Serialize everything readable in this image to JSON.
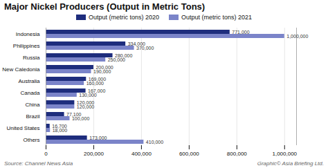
{
  "chart_data": {
    "type": "bar",
    "orientation": "horizontal",
    "title": "Major Nickel Producers (Output in Metric Tons)",
    "categories": [
      "Indonesia",
      "Philippines",
      "Russia",
      "New Caledonia",
      "Australia",
      "Canada",
      "China",
      "Brazil",
      "United States",
      "Others"
    ],
    "series": [
      {
        "name": "Output (metric tons) 2020",
        "color": "#1e2d7d",
        "values": [
          771000,
          334000,
          280000,
          200000,
          169000,
          167000,
          120000,
          77100,
          16700,
          173000
        ],
        "value_labels": [
          "771,000",
          "334,000",
          "280,000",
          "200,000",
          "169,000",
          "167,000",
          "120,000",
          "77,100",
          "16,700",
          "173,000"
        ]
      },
      {
        "name": "Output (metric tons) 2021",
        "color": "#7b84c9",
        "values": [
          1000000,
          370000,
          250000,
          190000,
          160000,
          130000,
          120000,
          100000,
          18000,
          410000
        ],
        "value_labels": [
          "1,000,000",
          "370,000",
          "250,000",
          "190,000",
          "160,000",
          "130,000",
          "120,000",
          "100,000",
          "18,000",
          "410,000"
        ]
      }
    ],
    "xlim": [
      0,
      1050000
    ],
    "xticks": [
      0,
      {
        "value": 200000,
        "label": "200,000"
      },
      {
        "value": 400000,
        "label": "400,000"
      },
      {
        "value": 600000,
        "label": "600,000"
      },
      {
        "value": 800000,
        "label": "800,000"
      },
      {
        "value": 1000000,
        "label": "1,000,000"
      }
    ],
    "grid": true,
    "legend": "top",
    "data_labels": true,
    "annotations": [
      "Source: Channel News Asia",
      "Graphic© Asia Briefing Ltd."
    ]
  }
}
